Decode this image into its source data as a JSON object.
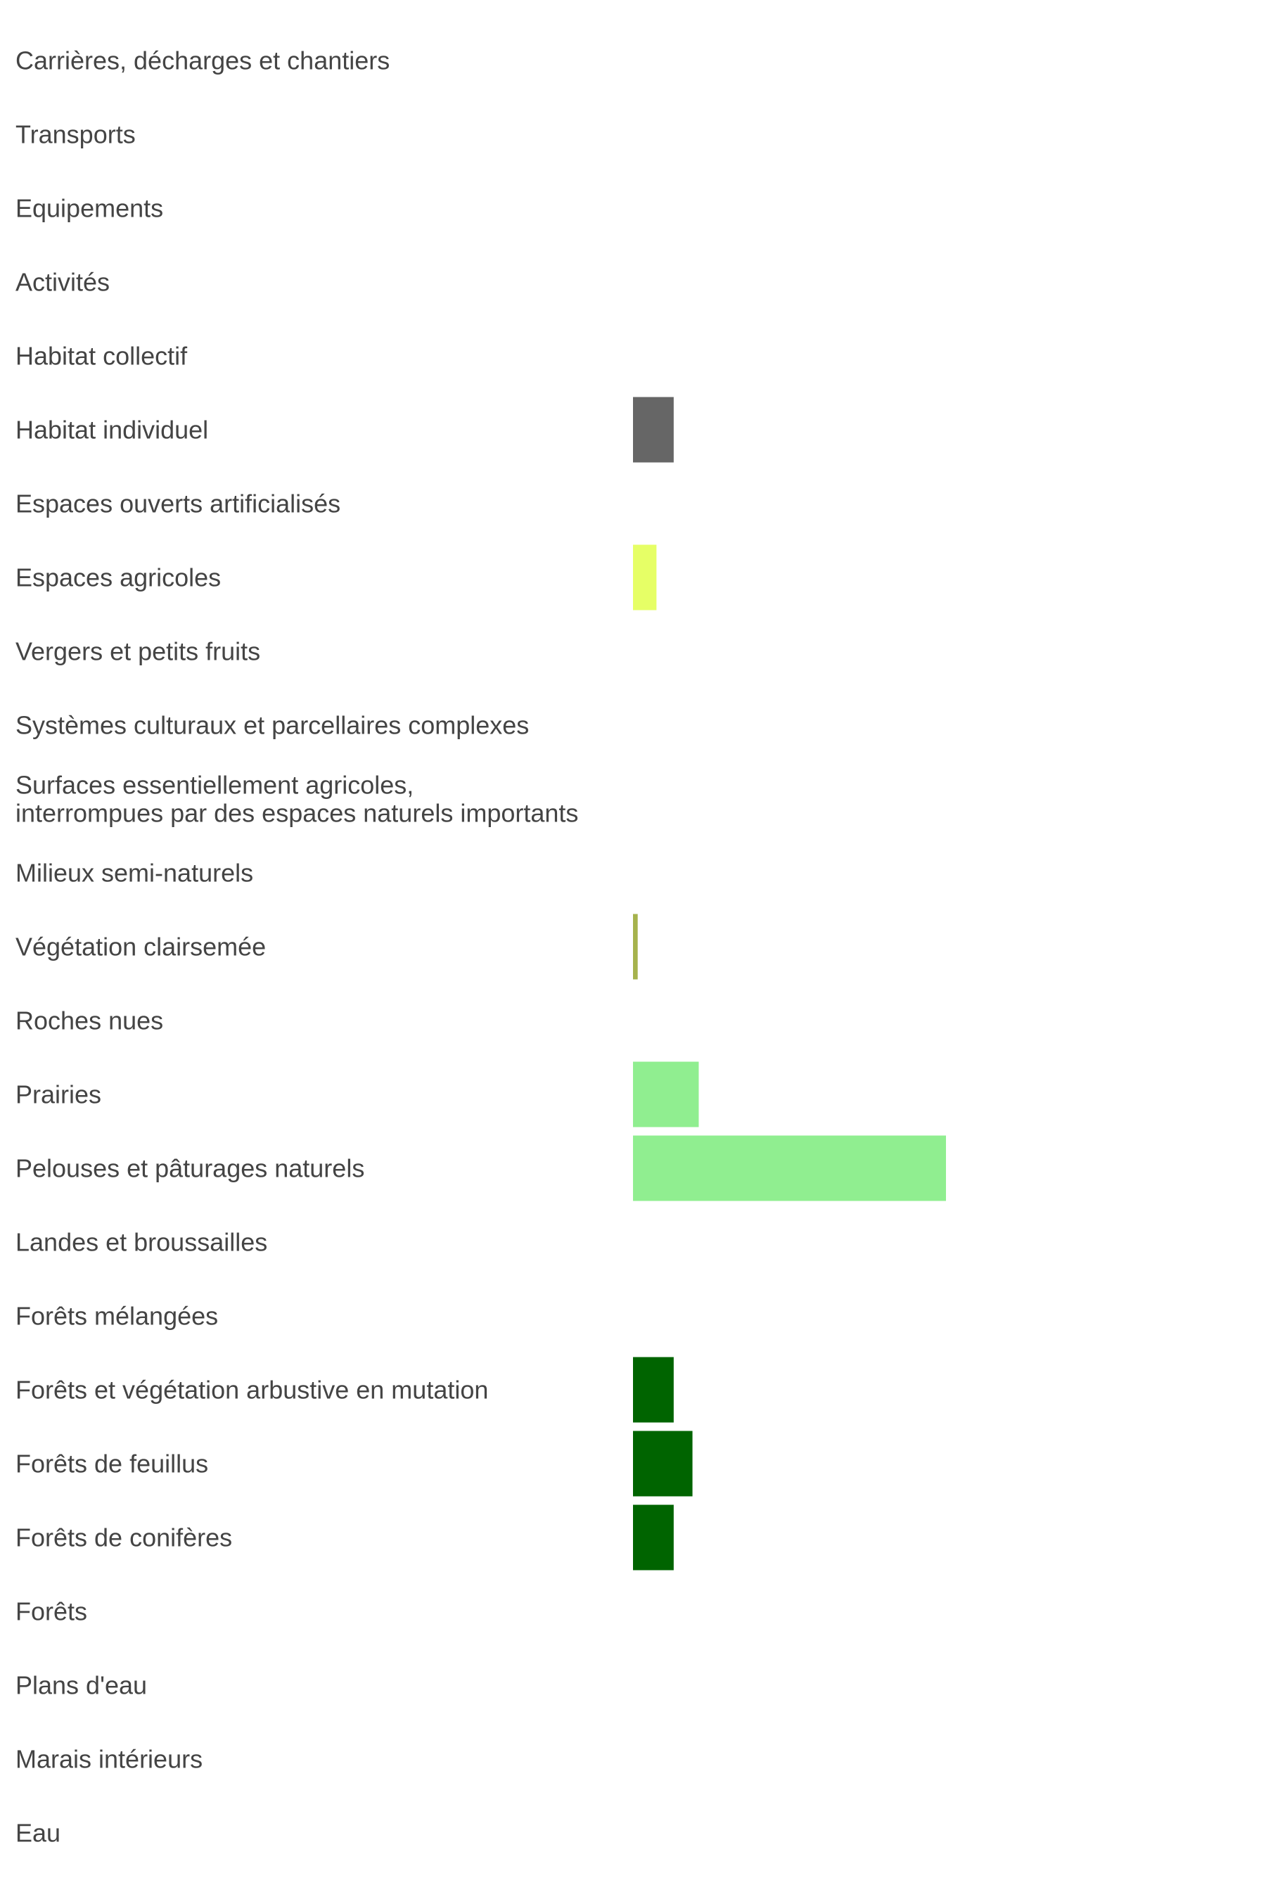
{
  "chart_data": {
    "type": "bar",
    "orientation": "horizontal",
    "title": "",
    "xlabel": "",
    "ylabel": "",
    "grid": false,
    "legend": "none",
    "categories": [
      "Carrières, décharges et chantiers",
      "Transports",
      "Equipements",
      "Activités",
      "Habitat collectif",
      "Habitat individuel",
      "Espaces ouverts artificialisés",
      "Espaces agricoles",
      "Vergers et petits fruits",
      "Systèmes culturaux et parcellaires complexes",
      "Surfaces essentiellement agricoles,\ninterrompues par des espaces naturels importants",
      "Milieux semi-naturels",
      "Végétation clairsemée",
      "Roches nues",
      "Prairies",
      "Pelouses et pâturages naturels",
      "Landes et broussailles",
      "Forêts mélangées",
      "Forêts et végétation arbustive en mutation",
      "Forêts de feuillus",
      "Forêts de conifères",
      "Forêts",
      "Plans d'eau",
      "Marais intérieurs",
      "Eau"
    ],
    "values": [
      0,
      0,
      0,
      0,
      0,
      13,
      0,
      7.5,
      0,
      0,
      0,
      0,
      1.5,
      0,
      21,
      100,
      0,
      0,
      13,
      19,
      13,
      0,
      0,
      0,
      0
    ],
    "colors": [
      "#666666",
      "#666666",
      "#666666",
      "#666666",
      "#666666",
      "#666666",
      "#666666",
      "#e6ff66",
      "#e6ff66",
      "#e6ff66",
      "#e6ff66",
      "#a6b34d",
      "#a6b34d",
      "#a6b34d",
      "#90ee90",
      "#90ee90",
      "#006400",
      "#006400",
      "#006400",
      "#006400",
      "#006400",
      "#006400",
      "#4da6ff",
      "#4da6ff",
      "#4da6ff"
    ],
    "xlim": [
      0,
      100
    ]
  }
}
